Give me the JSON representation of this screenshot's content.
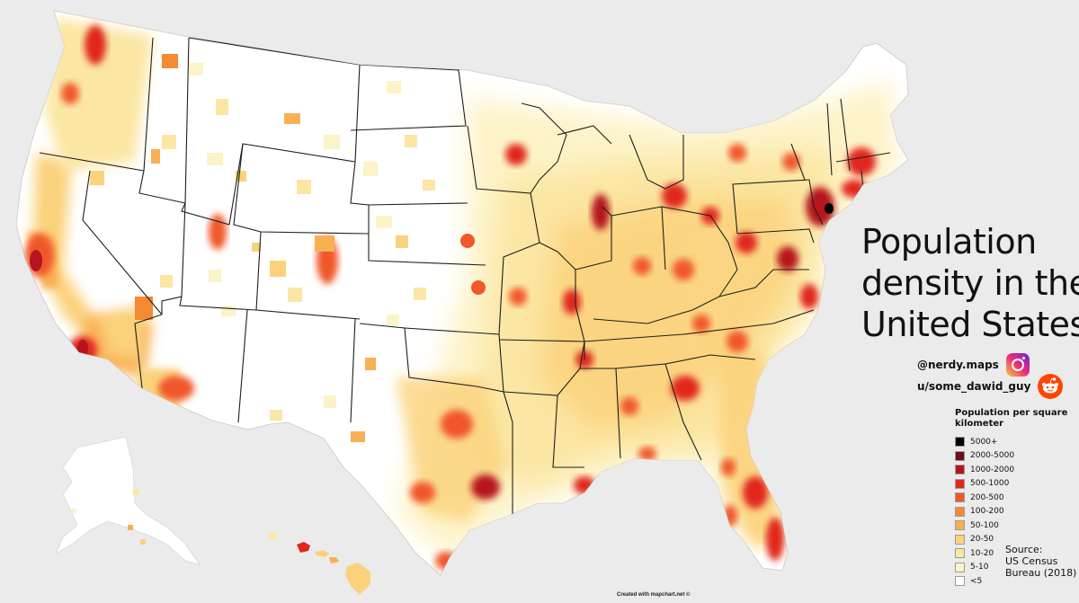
{
  "title_lines": [
    "Population",
    "density in the",
    "United States"
  ],
  "social": {
    "instagram": {
      "handle": "@nerdy.maps",
      "icon": "instagram-icon"
    },
    "reddit": {
      "handle": "u/some_dawid_guy",
      "icon": "reddit-icon"
    }
  },
  "legend": {
    "title": "Population per square kilometer",
    "items": [
      {
        "label": "5000+",
        "color": "#000000"
      },
      {
        "label": "2000-5000",
        "color": "#6b0f1a"
      },
      {
        "label": "1000-2000",
        "color": "#b5141e"
      },
      {
        "label": "500-1000",
        "color": "#e1261c"
      },
      {
        "label": "200-500",
        "color": "#f0572a"
      },
      {
        "label": "100-200",
        "color": "#f48a33"
      },
      {
        "label": "50-100",
        "color": "#f8b055"
      },
      {
        "label": "20-50",
        "color": "#fbd27c"
      },
      {
        "label": "10-20",
        "color": "#fbe6a3"
      },
      {
        "label": "5-10",
        "color": "#fdf3c8"
      },
      {
        "label": "<5",
        "color": "#ffffff"
      }
    ]
  },
  "source": {
    "label": "Source:",
    "line1": "US Census",
    "line2": "Bureau (2018)"
  },
  "credit": "Created with mapchart.net ©",
  "colors": {
    "background": "#ebebeb",
    "land": "#ffffff",
    "border": "#222222"
  }
}
